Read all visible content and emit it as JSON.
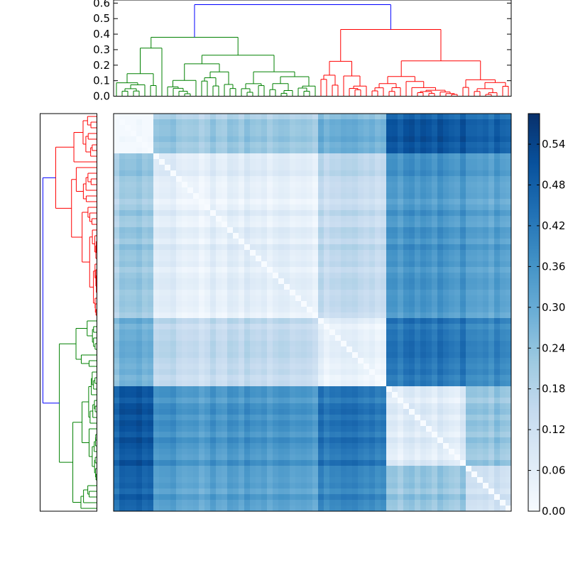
{
  "chart_data": {
    "type": "heatmap",
    "title": "",
    "description_free": true,
    "matrix_size": 70,
    "cluster_sizes": {
      "top_dendrogram": {
        "green": 36,
        "red": 34
      },
      "left_dendrogram": {
        "red": 36,
        "green": 34
      }
    },
    "top_dendrogram": {
      "y_axis": {
        "range": [
          0.0,
          0.62
        ],
        "ticks": [
          0.0,
          0.1,
          0.2,
          0.3,
          0.4,
          0.5,
          0.6
        ],
        "tick_labels": [
          "0.0",
          "0.1",
          "0.2",
          "0.3",
          "0.4",
          "0.5",
          "0.6"
        ]
      },
      "root_height": 0.59,
      "left_cluster_height": 0.38,
      "right_cluster_height": 0.43,
      "link_colors": {
        "root": "#0000ff",
        "left_cluster": "#008000",
        "right_cluster": "#ff0000"
      }
    },
    "left_dendrogram": {
      "root_height": 0.59,
      "link_colors": {
        "root": "#0000ff",
        "top_cluster": "#ff0000",
        "bottom_cluster": "#008000"
      }
    },
    "colorbar": {
      "range": [
        0.0,
        0.585
      ],
      "ticks": [
        0.0,
        0.06,
        0.12,
        0.18,
        0.24,
        0.3,
        0.36,
        0.42,
        0.48,
        0.54
      ],
      "tick_labels": [
        "0.00",
        "0.06",
        "0.12",
        "0.18",
        "0.24",
        "0.30",
        "0.36",
        "0.42",
        "0.48",
        "0.54"
      ],
      "colormap": "Blues",
      "colors": [
        "#f7fbff",
        "#deebf7",
        "#c6dbef",
        "#9ecae1",
        "#6baed6",
        "#4292c6",
        "#2171b5",
        "#08519c",
        "#08306b"
      ]
    },
    "heatmap": {
      "block_boundaries": [
        0,
        7,
        22,
        36,
        48,
        55,
        62,
        70
      ],
      "block_groups": [
        0,
        1,
        1,
        2,
        3,
        3,
        4
      ],
      "group_distance": [
        [
          0.0,
          0.22,
          0.28,
          0.5,
          0.46
        ],
        [
          0.22,
          0.05,
          0.14,
          0.35,
          0.31
        ],
        [
          0.28,
          0.14,
          0.03,
          0.42,
          0.37
        ],
        [
          0.5,
          0.35,
          0.42,
          0.07,
          0.22
        ],
        [
          0.46,
          0.31,
          0.37,
          0.22,
          0.1
        ]
      ],
      "diagonal_value": 0.0
    }
  }
}
